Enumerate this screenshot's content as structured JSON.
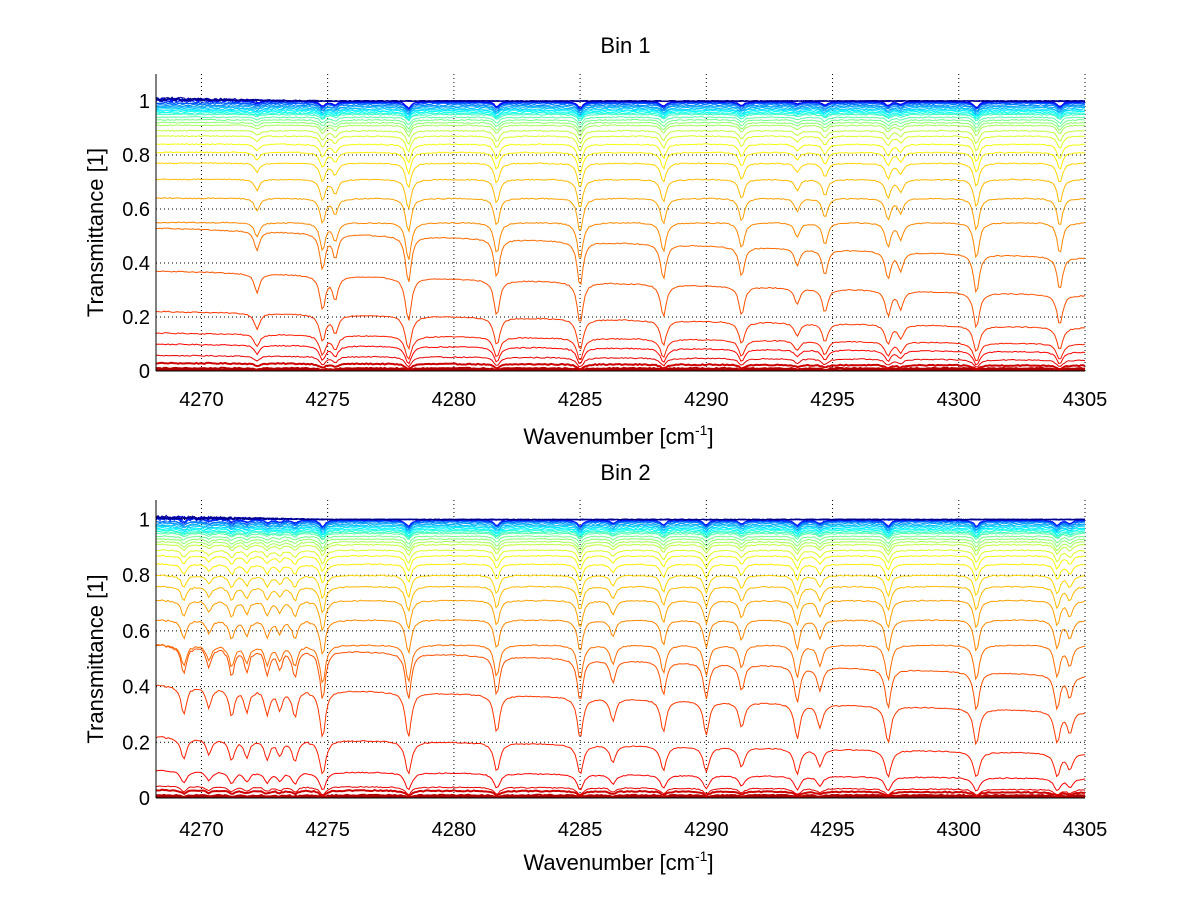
{
  "figure": {
    "background": "#ffffff",
    "colormap": "jet",
    "line_color_low": "#8b0000",
    "line_color_high": "#00008f",
    "grid_color": "#000000"
  },
  "chart_data": [
    {
      "type": "line",
      "title": "Bin 1",
      "xlabel": "Wavenumber [cm",
      "xlabel_sup": "-1",
      "xlabel_suffix": "]",
      "ylabel": "Transmittance [1]",
      "xlim": [
        4268.2,
        4305
      ],
      "ylim": [
        0,
        1.1
      ],
      "xticks": [
        4270,
        4275,
        4280,
        4285,
        4290,
        4295,
        4300,
        4305
      ],
      "xtick_labels": [
        "4270",
        "4275",
        "4280",
        "4285",
        "4290",
        "4295",
        "4300",
        "4305"
      ],
      "yticks": [
        0,
        0.2,
        0.4,
        0.6,
        0.8,
        1
      ],
      "ytick_labels": [
        "0",
        "0.2",
        "0.4",
        "0.6",
        "0.8",
        "1"
      ],
      "grid": "dotted",
      "series_count": 40,
      "series_description": "Family of transmittance spectra, colored by jet colormap from dark red (lowest transmittance) to dark blue (near 1)",
      "baseline_levels_at_4305": [
        0.0,
        0.005,
        0.01,
        0.02,
        0.04,
        0.07,
        0.1,
        0.16,
        0.28,
        0.42,
        0.55,
        0.64,
        0.71,
        0.77,
        0.81,
        0.84,
        0.87,
        0.89,
        0.91,
        0.92,
        0.93,
        0.94,
        0.95,
        0.955,
        0.96,
        0.965,
        0.97,
        0.975,
        0.98,
        0.985,
        0.99,
        0.993,
        0.995,
        0.997,
        0.998,
        0.999,
        1.0,
        1.0,
        1.0,
        1.0
      ],
      "absorption_lines": [
        {
          "x": 4272.2,
          "strength": 0.35
        },
        {
          "x": 4274.8,
          "strength": 0.7
        },
        {
          "x": 4275.3,
          "strength": 0.45
        },
        {
          "x": 4278.2,
          "strength": 1.0
        },
        {
          "x": 4281.7,
          "strength": 0.8
        },
        {
          "x": 4285.0,
          "strength": 1.0
        },
        {
          "x": 4288.3,
          "strength": 0.75
        },
        {
          "x": 4291.4,
          "strength": 0.65
        },
        {
          "x": 4293.6,
          "strength": 0.35
        },
        {
          "x": 4294.7,
          "strength": 0.55
        },
        {
          "x": 4297.2,
          "strength": 0.6
        },
        {
          "x": 4297.7,
          "strength": 0.4
        },
        {
          "x": 4300.7,
          "strength": 0.95
        },
        {
          "x": 4304.0,
          "strength": 0.8
        }
      ]
    },
    {
      "type": "line",
      "title": "Bin 2",
      "xlabel": "Wavenumber [cm",
      "xlabel_sup": "-1",
      "xlabel_suffix": "]",
      "ylabel": "Transmittance [1]",
      "xlim": [
        4268.2,
        4305
      ],
      "ylim": [
        0,
        1.07
      ],
      "xticks": [
        4270,
        4275,
        4280,
        4285,
        4290,
        4295,
        4300,
        4305
      ],
      "xtick_labels": [
        "4270",
        "4275",
        "4280",
        "4285",
        "4290",
        "4295",
        "4300",
        "4305"
      ],
      "yticks": [
        0,
        0.2,
        0.4,
        0.6,
        0.8,
        1
      ],
      "ytick_labels": [
        "0",
        "0.2",
        "0.4",
        "0.6",
        "0.8",
        "1"
      ],
      "grid": "dotted",
      "series_count": 40,
      "series_description": "Family of transmittance spectra, colored by jet colormap from dark red (lowest transmittance) to dark blue (near 1)",
      "baseline_levels_at_4305": [
        0.0,
        0.005,
        0.01,
        0.02,
        0.03,
        0.07,
        0.16,
        0.31,
        0.44,
        0.55,
        0.64,
        0.71,
        0.76,
        0.8,
        0.84,
        0.87,
        0.89,
        0.91,
        0.92,
        0.93,
        0.94,
        0.95,
        0.955,
        0.96,
        0.965,
        0.97,
        0.975,
        0.98,
        0.985,
        0.99,
        0.993,
        0.995,
        0.997,
        0.998,
        0.999,
        1.0,
        1.0,
        1.0,
        1.0,
        1.0
      ],
      "absorption_lines": [
        {
          "x": 4269.3,
          "strength": 0.5
        },
        {
          "x": 4270.3,
          "strength": 0.35
        },
        {
          "x": 4271.2,
          "strength": 0.5
        },
        {
          "x": 4271.8,
          "strength": 0.4
        },
        {
          "x": 4272.6,
          "strength": 0.45
        },
        {
          "x": 4273.1,
          "strength": 0.35
        },
        {
          "x": 4273.7,
          "strength": 0.5
        },
        {
          "x": 4274.8,
          "strength": 1.0
        },
        {
          "x": 4278.2,
          "strength": 0.95
        },
        {
          "x": 4281.7,
          "strength": 0.8
        },
        {
          "x": 4285.0,
          "strength": 0.9
        },
        {
          "x": 4286.3,
          "strength": 0.45
        },
        {
          "x": 4288.3,
          "strength": 0.7
        },
        {
          "x": 4290.0,
          "strength": 0.75
        },
        {
          "x": 4291.4,
          "strength": 0.55
        },
        {
          "x": 4293.6,
          "strength": 0.8
        },
        {
          "x": 4294.5,
          "strength": 0.5
        },
        {
          "x": 4297.2,
          "strength": 0.9
        },
        {
          "x": 4300.7,
          "strength": 0.9
        },
        {
          "x": 4303.9,
          "strength": 0.8
        },
        {
          "x": 4304.4,
          "strength": 0.5
        }
      ]
    }
  ]
}
